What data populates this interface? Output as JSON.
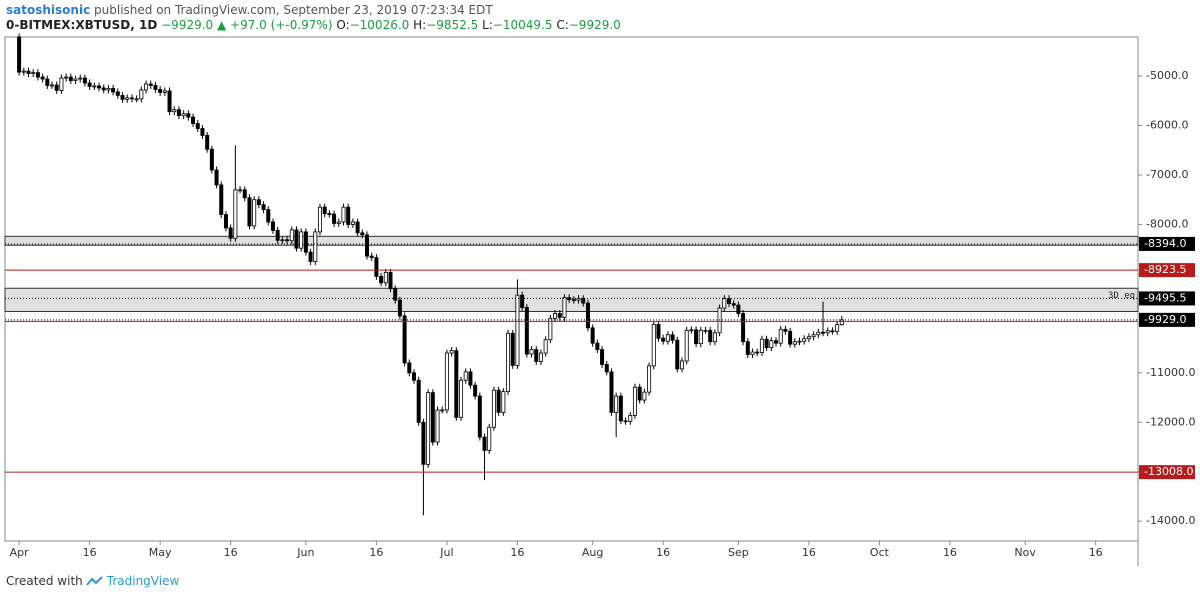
{
  "header": {
    "author": "satoshisonic",
    "published": "published on TradingView.com, September 23, 2019 07:23:34 EDT"
  },
  "legend": {
    "symbol": "0-BITMEX:XBTUSD, 1D",
    "last": "−9929.0",
    "change": "▲ +97.0 (+-0.97%)",
    "o_label": "O:",
    "o": "−10026.0",
    "h_label": "H:",
    "h": "−9852.5",
    "l_label": "L:",
    "l": "−10049.5",
    "c_label": "C:",
    "c": "−9929.0"
  },
  "footer": {
    "created": "Created with",
    "brand": "TradingView"
  },
  "chart_data": {
    "type": "candlestick",
    "up_color": "#ffffff",
    "down_color": "#000000",
    "x": [
      "04-01",
      "04-02",
      "04-03",
      "04-04",
      "04-05",
      "04-06",
      "04-07",
      "04-08",
      "04-09",
      "04-10",
      "04-11",
      "04-12",
      "04-13",
      "04-14",
      "04-15",
      "04-16",
      "04-17",
      "04-18",
      "04-19",
      "04-20",
      "04-21",
      "04-22",
      "04-23",
      "04-24",
      "04-25",
      "04-26",
      "04-27",
      "04-28",
      "04-29",
      "04-30",
      "05-01",
      "05-02",
      "05-03",
      "05-04",
      "05-05",
      "05-06",
      "05-07",
      "05-08",
      "05-09",
      "05-10",
      "05-11",
      "05-12",
      "05-13",
      "05-14",
      "05-15",
      "05-16",
      "05-17",
      "05-18",
      "05-19",
      "05-20",
      "05-21",
      "05-22",
      "05-23",
      "05-24",
      "05-25",
      "05-26",
      "05-27",
      "05-28",
      "05-29",
      "05-30",
      "05-31",
      "06-01",
      "06-02",
      "06-03",
      "06-04",
      "06-05",
      "06-06",
      "06-07",
      "06-08",
      "06-09",
      "06-10",
      "06-11",
      "06-12",
      "06-13",
      "06-14",
      "06-15",
      "06-16",
      "06-17",
      "06-18",
      "06-19",
      "06-20",
      "06-21",
      "06-22",
      "06-23",
      "06-24",
      "06-25",
      "06-26",
      "06-27",
      "06-28",
      "06-29",
      "06-30",
      "07-01",
      "07-02",
      "07-03",
      "07-04",
      "07-05",
      "07-06",
      "07-07",
      "07-08",
      "07-09",
      "07-10",
      "07-11",
      "07-12",
      "07-13",
      "07-14",
      "07-15",
      "07-16",
      "07-17",
      "07-18",
      "07-19",
      "07-20",
      "07-21",
      "07-22",
      "07-23",
      "07-24",
      "07-25",
      "07-26",
      "07-27",
      "07-28",
      "07-29",
      "07-30",
      "07-31",
      "08-01",
      "08-02",
      "08-03",
      "08-04",
      "08-05",
      "08-06",
      "08-07",
      "08-08",
      "08-09",
      "08-10",
      "08-11",
      "08-12",
      "08-13",
      "08-14",
      "08-15",
      "08-16",
      "08-17",
      "08-18",
      "08-19",
      "08-20",
      "08-21",
      "08-22",
      "08-23",
      "08-24",
      "08-25",
      "08-26",
      "08-27",
      "08-28",
      "08-29",
      "08-30",
      "08-31",
      "09-01",
      "09-02",
      "09-03",
      "09-04",
      "09-05",
      "09-06",
      "09-07",
      "09-08",
      "09-09",
      "09-10",
      "09-11",
      "09-12",
      "09-13",
      "09-14",
      "09-15",
      "09-16",
      "09-17",
      "09-18",
      "09-19",
      "09-20",
      "09-21",
      "09-22",
      "09-23"
    ],
    "open": [
      -4210,
      -4920,
      -4900,
      -4950,
      -4930,
      -5020,
      -5060,
      -5190,
      -5180,
      -5290,
      -5040,
      -5020,
      -5090,
      -5060,
      -5040,
      -5140,
      -5210,
      -5200,
      -5240,
      -5280,
      -5250,
      -5320,
      -5390,
      -5470,
      -5440,
      -5460,
      -5460,
      -5280,
      -5160,
      -5190,
      -5270,
      -5330,
      -5300,
      -5720,
      -5680,
      -5800,
      -5760,
      -5830,
      -5960,
      -6060,
      -6200,
      -6480,
      -6900,
      -7200,
      -7800,
      -8070,
      -8280,
      -7300,
      -7300,
      -7460,
      -8030,
      -7500,
      -7600,
      -7700,
      -7950,
      -8120,
      -8320,
      -8310,
      -8330,
      -8110,
      -8480,
      -8150,
      -8560,
      -8750,
      -8150,
      -7650,
      -7780,
      -7790,
      -7980,
      -7950,
      -7650,
      -8000,
      -7950,
      -8170,
      -8210,
      -8640,
      -8670,
      -9050,
      -9180,
      -8970,
      -9300,
      -9530,
      -9850,
      -10800,
      -11000,
      -11150,
      -12000,
      -12850,
      -11400,
      -12400,
      -11750,
      -11750,
      -10600,
      -10550,
      -11900,
      -11150,
      -10980,
      -11250,
      -11470,
      -12300,
      -12570,
      -12100,
      -11350,
      -11800,
      -11380,
      -10200,
      -10850,
      -9430,
      -9680,
      -10620,
      -10530,
      -10770,
      -10600,
      -10330,
      -9900,
      -9800,
      -9880,
      -9480,
      -9520,
      -9530,
      -9500,
      -9590,
      -10090,
      -10400,
      -10530,
      -10830,
      -10980,
      -11800,
      -11470,
      -11970,
      -11980,
      -11860,
      -11290,
      -11550,
      -11390,
      -10860,
      -10020,
      -10300,
      -10360,
      -10230,
      -10340,
      -10920,
      -10760,
      -10140,
      -10130,
      -10410,
      -10140,
      -10140,
      -10370,
      -10190,
      -9690,
      -9500,
      -9600,
      -9630,
      -9800,
      -10370,
      -10630,
      -10580,
      -10590,
      -10320,
      -10490,
      -10350,
      -10400,
      -10120,
      -10160,
      -10420,
      -10370,
      -10360,
      -10310,
      -10270,
      -10230,
      -10180,
      -10190,
      -10150,
      -10160,
      -10026
    ],
    "high": [
      -4140,
      -4830,
      -4830,
      -4860,
      -4860,
      -4950,
      -4990,
      -5110,
      -5110,
      -4970,
      -4950,
      -4950,
      -4990,
      -4970,
      -4970,
      -5070,
      -5130,
      -5130,
      -5170,
      -5180,
      -5180,
      -5250,
      -5320,
      -5370,
      -5370,
      -5390,
      -5210,
      -5090,
      -5090,
      -5120,
      -5200,
      -5230,
      -5230,
      -5610,
      -5610,
      -5690,
      -5690,
      -5760,
      -5890,
      -5990,
      -6130,
      -6410,
      -6830,
      -7130,
      -7730,
      -8000,
      -6400,
      -7230,
      -7230,
      -7390,
      -7430,
      -7430,
      -7530,
      -7630,
      -7880,
      -8050,
      -8250,
      -8240,
      -8040,
      -8040,
      -8080,
      -8080,
      -8490,
      -8080,
      -7580,
      -7580,
      -7710,
      -7720,
      -7880,
      -7580,
      -7580,
      -7880,
      -7880,
      -8100,
      -8140,
      -8570,
      -8600,
      -8980,
      -8900,
      -8900,
      -9230,
      -9460,
      -9780,
      -10730,
      -10930,
      -11080,
      -11930,
      -11330,
      -11330,
      -11680,
      -11680,
      -10530,
      -10480,
      -10480,
      -11080,
      -10910,
      -10910,
      -11180,
      -11400,
      -12230,
      -12030,
      -11280,
      -11280,
      -11310,
      -10130,
      -10130,
      -9110,
      -9360,
      -9610,
      -10460,
      -10460,
      -10530,
      -10260,
      -9830,
      -9730,
      -9730,
      -9410,
      -9410,
      -9450,
      -9430,
      -9430,
      -9520,
      -10020,
      -10330,
      -10460,
      -10760,
      -10910,
      -11400,
      -11400,
      -11900,
      -11790,
      -11220,
      -11220,
      -11320,
      -10790,
      -9950,
      -9950,
      -10230,
      -10160,
      -10160,
      -10270,
      -10690,
      -10070,
      -10060,
      -10060,
      -10070,
      -10070,
      -10070,
      -10120,
      -9620,
      -9430,
      -9430,
      -9530,
      -9560,
      -9730,
      -10300,
      -10510,
      -10510,
      -10250,
      -10250,
      -10280,
      -10280,
      -10050,
      -10050,
      -10090,
      -10300,
      -10290,
      -10240,
      -10200,
      -10160,
      -10110,
      -9560,
      -10080,
      -10080,
      -9960,
      -9852.5
    ],
    "low": [
      -4990,
      -4990,
      -5020,
      -5020,
      -5090,
      -5130,
      -5260,
      -5260,
      -5360,
      -5360,
      -5110,
      -5160,
      -5160,
      -5130,
      -5210,
      -5280,
      -5280,
      -5310,
      -5350,
      -5350,
      -5390,
      -5460,
      -5540,
      -5540,
      -5530,
      -5530,
      -5530,
      -5350,
      -5260,
      -5340,
      -5400,
      -5400,
      -5790,
      -5790,
      -5870,
      -5870,
      -5900,
      -6030,
      -6130,
      -6270,
      -6550,
      -6970,
      -7270,
      -7870,
      -8140,
      -8350,
      -8350,
      -7370,
      -7530,
      -8100,
      -8100,
      -7670,
      -7770,
      -8020,
      -8190,
      -8390,
      -8390,
      -8400,
      -8400,
      -8550,
      -8550,
      -8630,
      -8820,
      -8820,
      -8220,
      -7850,
      -7860,
      -8050,
      -8050,
      -8020,
      -8070,
      -8070,
      -8240,
      -8280,
      -8710,
      -8740,
      -9120,
      -9250,
      -9250,
      -9370,
      -9600,
      -9920,
      -10870,
      -11070,
      -11220,
      -12070,
      -13880,
      -12920,
      -12470,
      -12470,
      -11820,
      -11820,
      -10670,
      -11970,
      -11970,
      -11220,
      -11320,
      -11540,
      -12370,
      -13170,
      -12640,
      -12170,
      -11870,
      -11870,
      -11450,
      -10920,
      -10920,
      -9750,
      -10690,
      -10690,
      -10840,
      -10840,
      -10670,
      -10400,
      -9970,
      -9950,
      -9950,
      -9590,
      -9600,
      -9600,
      -9660,
      -10160,
      -10470,
      -10600,
      -10900,
      -11050,
      -11870,
      -12300,
      -12040,
      -12050,
      -12050,
      -11930,
      -11620,
      -11620,
      -11460,
      -10930,
      -10370,
      -10430,
      -10430,
      -10410,
      -10990,
      -10990,
      -10830,
      -10210,
      -10480,
      -10480,
      -10210,
      -10440,
      -10440,
      -10260,
      -9760,
      -9670,
      -9700,
      -9870,
      -10440,
      -10700,
      -10700,
      -10660,
      -10660,
      -10560,
      -10560,
      -10470,
      -10470,
      -10230,
      -10490,
      -10490,
      -10440,
      -10430,
      -10380,
      -10340,
      -10300,
      -10260,
      -10260,
      -10230,
      -10230,
      -10049.5
    ],
    "close": [
      -4920,
      -4900,
      -4950,
      -4930,
      -5020,
      -5060,
      -5190,
      -5180,
      -5290,
      -5040,
      -5020,
      -5090,
      -5060,
      -5040,
      -5140,
      -5210,
      -5200,
      -5240,
      -5280,
      -5250,
      -5320,
      -5390,
      -5470,
      -5440,
      -5460,
      -5460,
      -5280,
      -5160,
      -5190,
      -5270,
      -5330,
      -5300,
      -5720,
      -5680,
      -5800,
      -5760,
      -5830,
      -5960,
      -6060,
      -6200,
      -6480,
      -6900,
      -7200,
      -7800,
      -8070,
      -8280,
      -7300,
      -7300,
      -7460,
      -8030,
      -7500,
      -7600,
      -7700,
      -7950,
      -8120,
      -8320,
      -8310,
      -8330,
      -8110,
      -8480,
      -8150,
      -8560,
      -8750,
      -8150,
      -7650,
      -7780,
      -7790,
      -7980,
      -7950,
      -7650,
      -8000,
      -7950,
      -8170,
      -8210,
      -8640,
      -8670,
      -9050,
      -9180,
      -8970,
      -9300,
      -9530,
      -9850,
      -10800,
      -11000,
      -11150,
      -12000,
      -12850,
      -11400,
      -12400,
      -11750,
      -11750,
      -10600,
      -10550,
      -11900,
      -11150,
      -10980,
      -11250,
      -11470,
      -12300,
      -12570,
      -12100,
      -11350,
      -11800,
      -11380,
      -10200,
      -10850,
      -9430,
      -9680,
      -10620,
      -10530,
      -10770,
      -10600,
      -10330,
      -9900,
      -9800,
      -9880,
      -9480,
      -9520,
      -9530,
      -9500,
      -9590,
      -10090,
      -10400,
      -10530,
      -10830,
      -10980,
      -11800,
      -11470,
      -11970,
      -11980,
      -11860,
      -11290,
      -11550,
      -11390,
      -10860,
      -10020,
      -10300,
      -10360,
      -10230,
      -10340,
      -10920,
      -10760,
      -10140,
      -10130,
      -10410,
      -10140,
      -10140,
      -10370,
      -10190,
      -9690,
      -9500,
      -9600,
      -9630,
      -9800,
      -10370,
      -10630,
      -10580,
      -10590,
      -10320,
      -10490,
      -10350,
      -10400,
      -10120,
      -10160,
      -10420,
      -10370,
      -10360,
      -10310,
      -10270,
      -10230,
      -10180,
      -10190,
      -10150,
      -10160,
      -10026,
      -9929
    ],
    "xlim": [
      "03-29",
      "11-25"
    ],
    "xticks": [
      {
        "value": "04-01",
        "label": "Apr"
      },
      {
        "value": "04-16",
        "label": "16"
      },
      {
        "value": "05-01",
        "label": "May"
      },
      {
        "value": "05-16",
        "label": "16"
      },
      {
        "value": "06-01",
        "label": "Jun"
      },
      {
        "value": "06-16",
        "label": "16"
      },
      {
        "value": "07-01",
        "label": "Jul"
      },
      {
        "value": "07-16",
        "label": "16"
      },
      {
        "value": "08-01",
        "label": "Aug"
      },
      {
        "value": "08-16",
        "label": "16"
      },
      {
        "value": "09-01",
        "label": "Sep"
      },
      {
        "value": "09-16",
        "label": "16"
      },
      {
        "value": "10-01",
        "label": "Oct"
      },
      {
        "value": "10-16",
        "label": "16"
      },
      {
        "value": "11-01",
        "label": "Nov"
      },
      {
        "value": "11-16",
        "label": "16"
      }
    ],
    "ylim": [
      -14400,
      -4210
    ],
    "yticks": [
      {
        "value": -5000,
        "label": "-5000.0"
      },
      {
        "value": -6000,
        "label": "-6000.0"
      },
      {
        "value": -7000,
        "label": "-7000.0"
      },
      {
        "value": -8000,
        "label": "-8000.0"
      },
      {
        "value": -9000,
        "label": "-9000.0"
      },
      {
        "value": -10000,
        "label": "-10000.0"
      },
      {
        "value": -11000,
        "label": "-11000.0"
      },
      {
        "value": -12000,
        "label": "-12000.0"
      },
      {
        "value": -13000,
        "label": "-13000.0"
      },
      {
        "value": -14000,
        "label": "-14000.0"
      }
    ],
    "zones": [
      {
        "from": -8240,
        "to": -8420,
        "color": "#e0e0e0"
      },
      {
        "from": -9290,
        "to": -9760,
        "color": "#e0e0e0",
        "label": "3D eq"
      }
    ],
    "levels": [
      {
        "value": -8394,
        "label": "-8394.0",
        "color": "#000000",
        "style": "dotted"
      },
      {
        "value": -8923.5,
        "label": "-8923.5",
        "color": "#b71c1c",
        "style": "solid"
      },
      {
        "value": -9495.5,
        "label": "-9495.5",
        "color": "#000000",
        "style": "dotted"
      },
      {
        "value": -9929,
        "label": "-9929.0",
        "color": "#000000",
        "style": "dotted"
      },
      {
        "value": -9960,
        "color": "#b71c1c",
        "style": "solid"
      },
      {
        "value": -13008,
        "label": "-13008.0",
        "color": "#b71c1c",
        "style": "solid"
      }
    ]
  }
}
